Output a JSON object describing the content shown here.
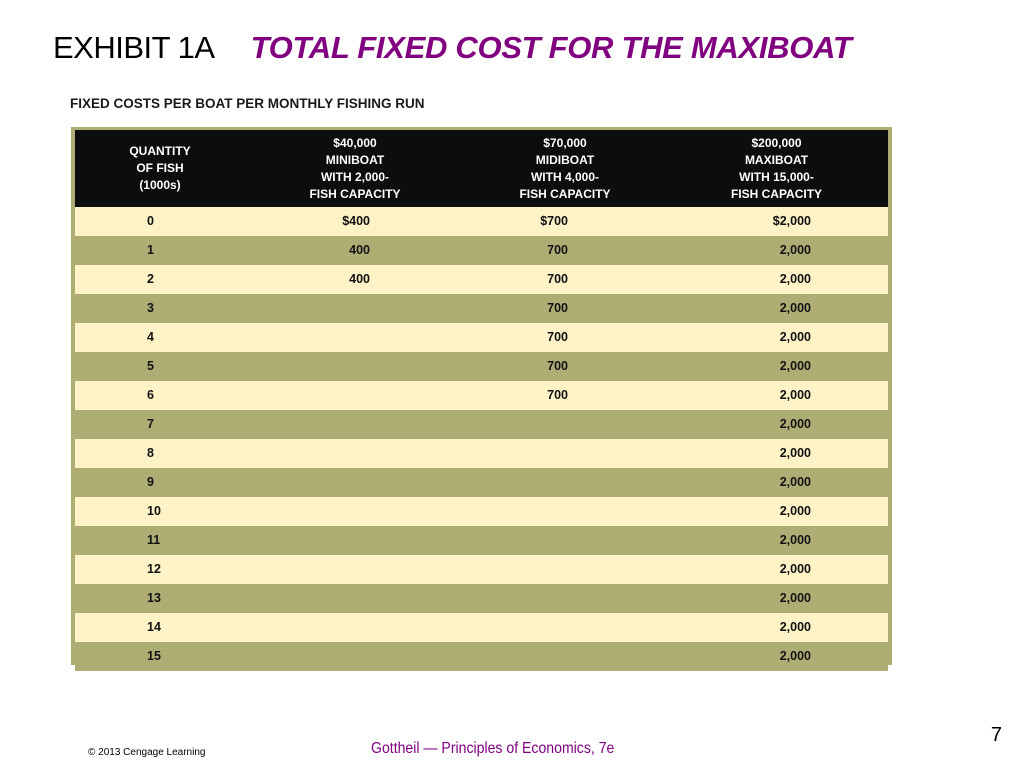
{
  "title": {
    "exhibit": "EXHIBIT 1A",
    "main": "TOTAL FIXED COST FOR THE MAXIBOAT"
  },
  "subtitle": "FIXED COSTS PER BOAT PER MONTHLY FISHING RUN",
  "table": {
    "headers": [
      [
        "QUANTITY",
        "OF FISH",
        "(1000s)"
      ],
      [
        "$40,000",
        "MINIBOAT",
        "WITH 2,000-",
        "FISH CAPACITY"
      ],
      [
        "$70,000",
        "MIDIBOAT",
        "WITH 4,000-",
        "FISH CAPACITY"
      ],
      [
        "$200,000",
        "MAXIBOAT",
        "WITH 15,000-",
        "FISH CAPACITY"
      ]
    ],
    "rows": [
      [
        "0",
        "$400",
        "$700",
        "$2,000"
      ],
      [
        "1",
        "400",
        "700",
        "2,000"
      ],
      [
        "2",
        "400",
        "700",
        "2,000"
      ],
      [
        "3",
        "",
        "700",
        "2,000"
      ],
      [
        "4",
        "",
        "700",
        "2,000"
      ],
      [
        "5",
        "",
        "700",
        "2,000"
      ],
      [
        "6",
        "",
        "700",
        "2,000"
      ],
      [
        "7",
        "",
        "",
        "2,000"
      ],
      [
        "8",
        "",
        "",
        "2,000"
      ],
      [
        "9",
        "",
        "",
        "2,000"
      ],
      [
        "10",
        "",
        "",
        "2,000"
      ],
      [
        "11",
        "",
        "",
        "2,000"
      ],
      [
        "12",
        "",
        "",
        "2,000"
      ],
      [
        "13",
        "",
        "",
        "2,000"
      ],
      [
        "14",
        "",
        "",
        "2,000"
      ],
      [
        "15",
        "",
        "",
        "2,000"
      ]
    ]
  },
  "footer": {
    "page_number": "7",
    "credit": "© 2013 Cengage Learning",
    "book": "Gottheil — Principles of Economics, 7e"
  },
  "colors": {
    "title_accent": "#800080",
    "header_bg": "#0d0d0d",
    "row_light": "#fdf3c6",
    "row_olive": "#aeae74"
  }
}
